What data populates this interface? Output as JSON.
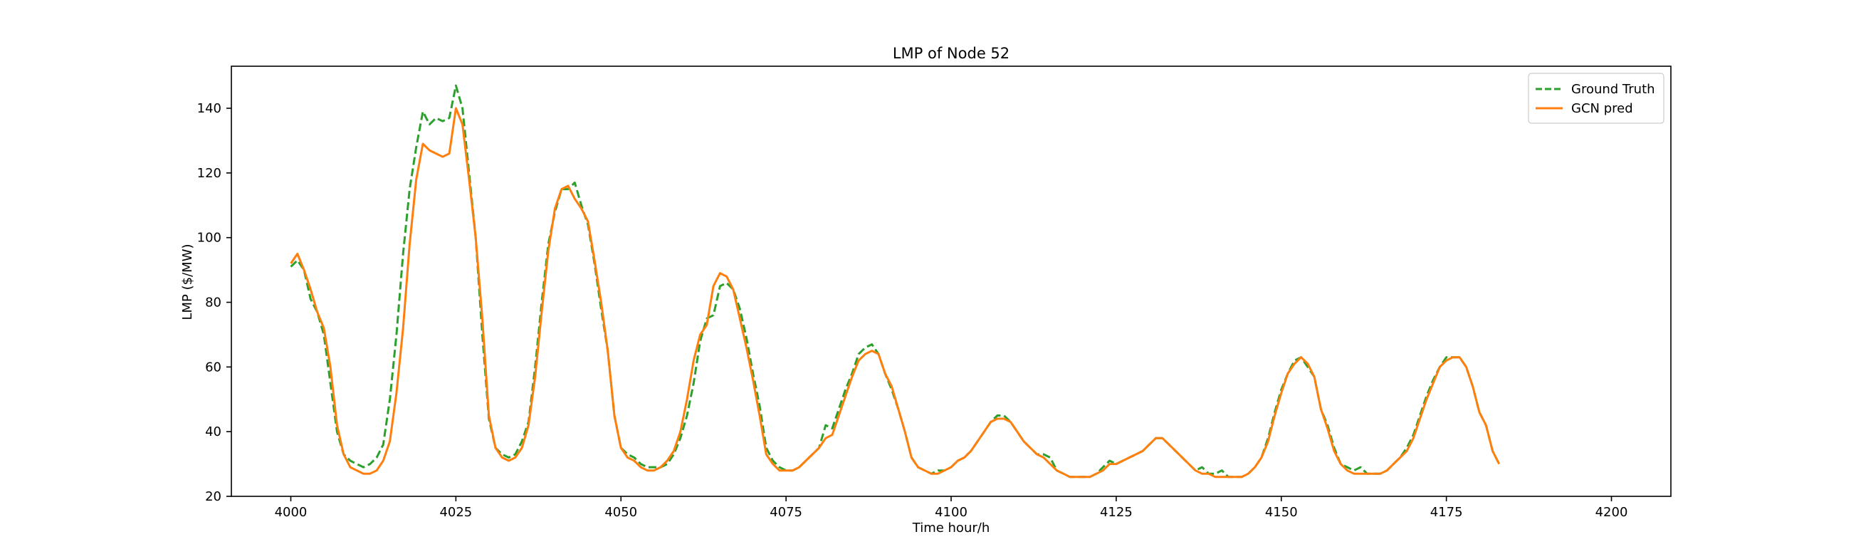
{
  "chart_data": {
    "type": "line",
    "title": "LMP of Node 52",
    "xlabel": "Time hour/h",
    "ylabel": "LMP ($/MW)",
    "xlim": [
      3991,
      4209
    ],
    "ylim": [
      20,
      153
    ],
    "xticks": [
      4000,
      4025,
      4050,
      4075,
      4100,
      4125,
      4150,
      4175,
      4200
    ],
    "yticks": [
      20,
      40,
      60,
      80,
      100,
      120,
      140
    ],
    "grid": false,
    "legend_position": "top-right",
    "x_start": 4000,
    "series": [
      {
        "name": "Ground Truth",
        "color": "#2ca02c",
        "dash": "dashed",
        "values": [
          91,
          93,
          90,
          81,
          77,
          70,
          55,
          40,
          33,
          31,
          30,
          29,
          30,
          32,
          36,
          50,
          70,
          95,
          115,
          128,
          139,
          135,
          137,
          136,
          137,
          147,
          140,
          120,
          100,
          70,
          44,
          35,
          33,
          32,
          33,
          37,
          43,
          60,
          80,
          98,
          108,
          115,
          115,
          117,
          110,
          104,
          92,
          78,
          65,
          45,
          35,
          33,
          32,
          30,
          29,
          29,
          29,
          30,
          33,
          38,
          45,
          55,
          68,
          75,
          76,
          85,
          86,
          84,
          78,
          69,
          58,
          48,
          35,
          31,
          29,
          28,
          28,
          29,
          31,
          33,
          35,
          42,
          41,
          47,
          53,
          58,
          64,
          66,
          67,
          64,
          58,
          53,
          47,
          40,
          32,
          29,
          28,
          27,
          28,
          28,
          29,
          31,
          32,
          34,
          37,
          40,
          43,
          45,
          45,
          43,
          40,
          37,
          35,
          33,
          33,
          32,
          28,
          27,
          26,
          26,
          26,
          26,
          27,
          29,
          31,
          30,
          31,
          32,
          33,
          34,
          36,
          38,
          38,
          36,
          34,
          32,
          30,
          28,
          29,
          27,
          27,
          28,
          26,
          26,
          26,
          27,
          29,
          32,
          38,
          46,
          53,
          58,
          62,
          63,
          60,
          57,
          47,
          42,
          35,
          30,
          29,
          28,
          29,
          27,
          27,
          27,
          28,
          30,
          32,
          35,
          39,
          45,
          51,
          56,
          60,
          63,
          63,
          63,
          60,
          54,
          46,
          42,
          34,
          30
        ]
      },
      {
        "name": "GCN pred",
        "color": "#ff7f0e",
        "dash": "solid",
        "values": [
          92,
          95,
          90,
          84,
          77,
          72,
          60,
          42,
          33,
          29,
          28,
          27,
          27,
          28,
          31,
          37,
          52,
          72,
          98,
          118,
          129,
          127,
          126,
          125,
          126,
          140,
          135,
          118,
          100,
          75,
          45,
          35,
          32,
          31,
          32,
          35,
          42,
          57,
          77,
          96,
          109,
          115,
          116,
          112,
          109,
          105,
          93,
          80,
          65,
          45,
          35,
          32,
          31,
          29,
          28,
          28,
          29,
          31,
          34,
          40,
          50,
          62,
          70,
          73,
          85,
          89,
          88,
          84,
          75,
          66,
          56,
          45,
          33,
          30,
          28,
          28,
          28,
          29,
          31,
          33,
          35,
          38,
          39,
          45,
          51,
          57,
          62,
          64,
          65,
          64,
          58,
          54,
          47,
          40,
          32,
          29,
          28,
          27,
          27,
          28,
          29,
          31,
          32,
          34,
          37,
          40,
          43,
          44,
          44,
          43,
          40,
          37,
          35,
          33,
          32,
          30,
          28,
          27,
          26,
          26,
          26,
          26,
          27,
          28,
          30,
          30,
          31,
          32,
          33,
          34,
          36,
          38,
          38,
          36,
          34,
          32,
          30,
          28,
          27,
          27,
          26,
          26,
          26,
          26,
          26,
          27,
          29,
          32,
          37,
          45,
          52,
          58,
          61,
          63,
          61,
          57,
          47,
          41,
          34,
          30,
          28,
          27,
          27,
          27,
          27,
          27,
          28,
          30,
          32,
          34,
          38,
          44,
          50,
          55,
          60,
          62,
          63,
          63,
          60,
          54,
          46,
          42,
          34,
          30
        ]
      }
    ]
  }
}
